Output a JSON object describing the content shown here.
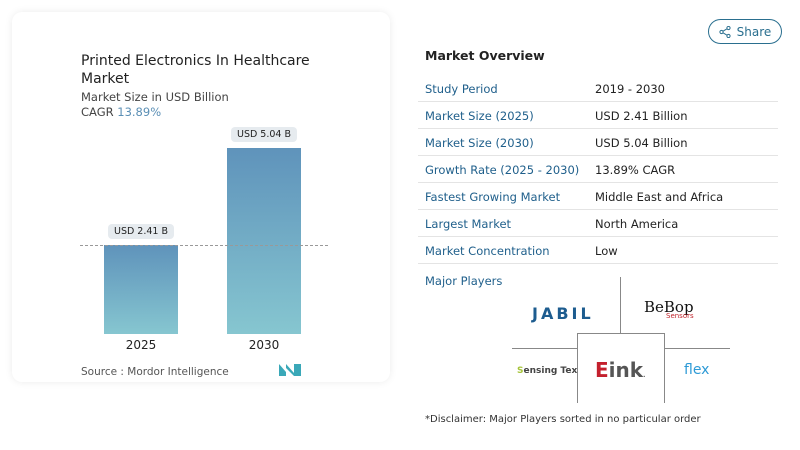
{
  "share_label": "Share",
  "chart_card": {
    "title": "Printed Electronics In Healthcare Market",
    "subtitle": "Market Size in USD Billion",
    "cagr_label": "CAGR",
    "cagr_value": "13.89%",
    "source": "Source :  Mordor Intelligence"
  },
  "chart_data": {
    "type": "bar",
    "categories": [
      "2025",
      "2030"
    ],
    "values": [
      2.41,
      5.04
    ],
    "data_labels": [
      "USD 2.41 B",
      "USD 5.04 B"
    ],
    "ylabel": "Market Size in USD Billion",
    "colors": [
      "#5f93bb",
      "#86c6d0"
    ]
  },
  "overview": {
    "title": "Market Overview",
    "rows": [
      {
        "k": "Study Period",
        "v": "2019 - 2030"
      },
      {
        "k": "Market Size (2025)",
        "v": "USD 2.41 Billion"
      },
      {
        "k": "Market Size (2030)",
        "v": "USD 5.04 Billion"
      },
      {
        "k": "Growth Rate (2025 - 2030)",
        "v": "13.89% CAGR"
      },
      {
        "k": "Fastest Growing Market",
        "v": "Middle East and Africa"
      },
      {
        "k": "Largest Market",
        "v": "North America"
      },
      {
        "k": "Market Concentration",
        "v": "Low"
      }
    ]
  },
  "major_players": {
    "title": "Major Players",
    "logos": [
      "JABIL",
      "BeBop Sensors",
      "Sensing Tex",
      "Eink",
      "flex"
    ]
  },
  "disclaimer": "*Disclaimer: Major Players sorted in no particular order"
}
